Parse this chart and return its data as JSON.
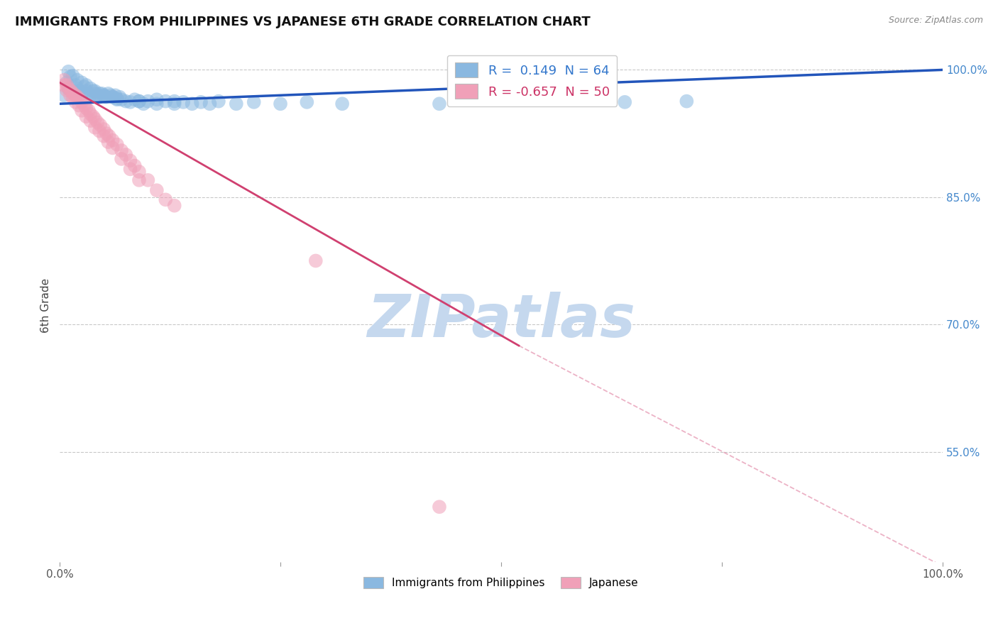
{
  "title": "IMMIGRANTS FROM PHILIPPINES VS JAPANESE 6TH GRADE CORRELATION CHART",
  "source": "Source: ZipAtlas.com",
  "ylabel": "6th Grade",
  "xlim": [
    0.0,
    1.0
  ],
  "ylim": [
    0.42,
    1.025
  ],
  "yticks": [
    0.55,
    0.7,
    0.85,
    1.0
  ],
  "ytick_labels": [
    "55.0%",
    "70.0%",
    "85.0%",
    "100.0%"
  ],
  "legend_r_blue": "0.149",
  "legend_n_blue": "64",
  "legend_r_pink": "-0.657",
  "legend_n_pink": "50",
  "blue_color": "#8ab8e0",
  "pink_color": "#f0a0b8",
  "trendline_blue_color": "#2255bb",
  "trendline_pink_solid": "#d04070",
  "trendline_pink_dash": "#e080a0",
  "watermark_color": "#c5d8ee",
  "grid_color": "#c8c8c8",
  "blue_trendline_y0": 0.96,
  "blue_trendline_y1": 1.0,
  "pink_trendline_y0": 0.985,
  "pink_trendline_solid_end_x": 0.52,
  "pink_trendline_solid_end_y": 0.675,
  "pink_trendline_dash_end_x": 1.0,
  "pink_trendline_dash_end_y": 0.415,
  "blue_scatter_x": [
    0.005,
    0.008,
    0.01,
    0.012,
    0.015,
    0.018,
    0.02,
    0.022,
    0.025,
    0.028,
    0.03,
    0.033,
    0.035,
    0.038,
    0.04,
    0.043,
    0.045,
    0.048,
    0.05,
    0.053,
    0.055,
    0.058,
    0.06,
    0.063,
    0.065,
    0.068,
    0.07,
    0.075,
    0.08,
    0.085,
    0.09,
    0.095,
    0.1,
    0.11,
    0.12,
    0.13,
    0.14,
    0.15,
    0.16,
    0.17,
    0.18,
    0.2,
    0.22,
    0.25,
    0.28,
    0.32,
    0.01,
    0.015,
    0.02,
    0.025,
    0.03,
    0.035,
    0.04,
    0.045,
    0.05,
    0.06,
    0.065,
    0.09,
    0.11,
    0.13,
    0.43,
    0.64,
    0.71,
    0.48
  ],
  "blue_scatter_y": [
    0.97,
    0.985,
    0.978,
    0.992,
    0.975,
    0.982,
    0.978,
    0.975,
    0.972,
    0.98,
    0.975,
    0.972,
    0.97,
    0.975,
    0.972,
    0.97,
    0.968,
    0.972,
    0.97,
    0.968,
    0.972,
    0.97,
    0.968,
    0.97,
    0.965,
    0.968,
    0.965,
    0.963,
    0.962,
    0.965,
    0.963,
    0.96,
    0.963,
    0.96,
    0.963,
    0.96,
    0.962,
    0.96,
    0.962,
    0.96,
    0.963,
    0.96,
    0.962,
    0.96,
    0.962,
    0.96,
    0.998,
    0.993,
    0.988,
    0.985,
    0.982,
    0.978,
    0.975,
    0.972,
    0.97,
    0.968,
    0.966,
    0.963,
    0.965,
    0.963,
    0.96,
    0.962,
    0.963,
    0.965
  ],
  "pink_scatter_x": [
    0.005,
    0.008,
    0.01,
    0.013,
    0.015,
    0.018,
    0.02,
    0.023,
    0.025,
    0.028,
    0.03,
    0.033,
    0.035,
    0.038,
    0.04,
    0.043,
    0.046,
    0.05,
    0.053,
    0.056,
    0.06,
    0.065,
    0.07,
    0.075,
    0.08,
    0.085,
    0.09,
    0.1,
    0.11,
    0.12,
    0.005,
    0.008,
    0.012,
    0.015,
    0.018,
    0.022,
    0.025,
    0.03,
    0.035,
    0.04,
    0.045,
    0.05,
    0.055,
    0.06,
    0.07,
    0.08,
    0.09,
    0.13,
    0.29,
    0.43
  ],
  "pink_scatter_y": [
    0.988,
    0.982,
    0.978,
    0.975,
    0.972,
    0.97,
    0.968,
    0.965,
    0.962,
    0.958,
    0.955,
    0.952,
    0.948,
    0.945,
    0.942,
    0.938,
    0.935,
    0.93,
    0.925,
    0.922,
    0.917,
    0.912,
    0.905,
    0.9,
    0.893,
    0.887,
    0.88,
    0.87,
    0.858,
    0.847,
    0.982,
    0.976,
    0.97,
    0.967,
    0.962,
    0.958,
    0.952,
    0.945,
    0.94,
    0.932,
    0.928,
    0.922,
    0.915,
    0.908,
    0.895,
    0.883,
    0.87,
    0.84,
    0.775,
    0.485
  ]
}
